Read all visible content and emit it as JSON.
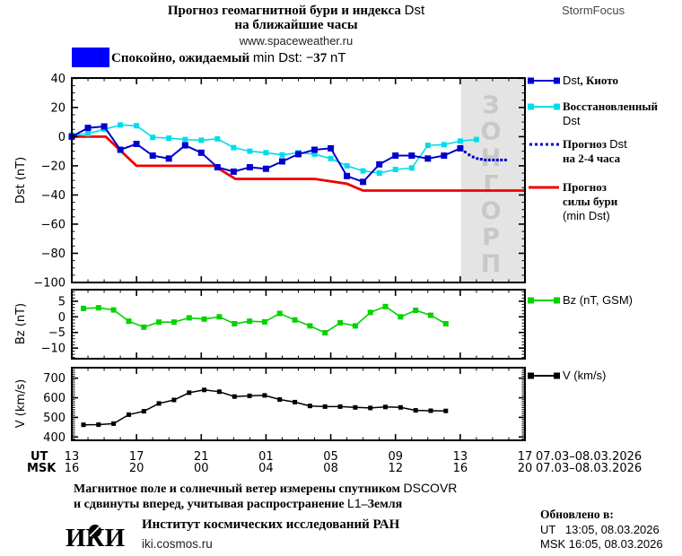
{
  "header": {
    "title_line1": "Прогноз геомагнитной бури и индекса Dst",
    "title_line2": "на ближайшие часы",
    "site": "www.spaceweather.ru",
    "brand": "StormFocus"
  },
  "status": {
    "text": "Спокойно, ожидаемый min Dst: −37 nT",
    "box_color": "#0000ff",
    "expected_min_dst_nt": -37
  },
  "watermark": "ПРОГНОЗ",
  "colors": {
    "kyoto_blue": "#0000cd",
    "restored_cyan": "#00dcec",
    "forecast_red": "#ee0000",
    "bz_green": "#00d300",
    "v_black": "#000000",
    "forecast_region_bg": "#e4e4e4",
    "watermark_text": "#c8c8c8"
  },
  "axis": {
    "ut_label": "UT",
    "msk_label": "MSK",
    "ut_ticks": [
      "13",
      "17",
      "21",
      "01",
      "05",
      "09",
      "13",
      "17"
    ],
    "msk_ticks": [
      "16",
      "20",
      "00",
      "04",
      "08",
      "12",
      "16",
      "20"
    ],
    "date_range": "07.03–08.03.2026"
  },
  "chart_data": [
    {
      "id": "dst",
      "type": "line",
      "ylabel": "Dst (nT)",
      "ylim": [
        -100,
        40
      ],
      "yticks": [
        40,
        20,
        0,
        -20,
        -40,
        -60,
        -80,
        -100
      ],
      "ytick_major": 20,
      "ytick_minor": 5,
      "x_hours_span": 28,
      "forecast_region_start_hour": 24.05,
      "series": [
        {
          "name": "Dst, Киото",
          "color": "#0000cd",
          "marker": "square",
          "ms": 7,
          "lw": 2,
          "x_start": 0,
          "x_step": 1,
          "values": [
            0,
            6,
            7,
            -9,
            -5,
            -13,
            -15,
            -6,
            -11,
            -21,
            -24,
            -21,
            -22,
            -17,
            -12,
            -9,
            -8,
            -27,
            -31,
            -19,
            -13,
            -13,
            -15,
            -13,
            -8
          ]
        },
        {
          "name": "Восстановленный Dst",
          "color": "#00dcec",
          "marker": "square",
          "ms": 6,
          "lw": 1.6,
          "x_start": 0,
          "x_step": 1,
          "values": [
            1,
            2,
            5,
            8,
            7.5,
            -0.5,
            -1,
            -2,
            -2.5,
            -1.5,
            -7.5,
            -10,
            -11,
            -12.5,
            -11,
            -12,
            -15,
            -20,
            -23.5,
            -25,
            -22.5,
            -21.5,
            -6,
            -5.5,
            -3,
            -2
          ]
        },
        {
          "name": "Прогноз Dst на 2-4 часа",
          "color": "#0000cd",
          "marker": "dots",
          "ms": 3,
          "lw": 0,
          "points": [
            [
              24.3,
              -10.5
            ],
            [
              24.55,
              -12.5
            ],
            [
              24.8,
              -14
            ],
            [
              25.05,
              -15
            ],
            [
              25.3,
              -15.5
            ],
            [
              25.55,
              -16
            ],
            [
              25.8,
              -16
            ],
            [
              26.05,
              -16
            ],
            [
              26.3,
              -16
            ],
            [
              26.55,
              -16
            ],
            [
              26.8,
              -16
            ]
          ]
        },
        {
          "name": "Прогноз силы бури (min Dst)",
          "color": "#ee0000",
          "marker": "none",
          "ms": 0,
          "lw": 2.8,
          "points": [
            [
              0,
              0
            ],
            [
              2.1,
              0
            ],
            [
              4,
              -20
            ],
            [
              8.8,
              -20
            ],
            [
              10.1,
              -29
            ],
            [
              15,
              -29
            ],
            [
              17,
              -32.3
            ],
            [
              18,
              -37
            ],
            [
              28,
              -37
            ]
          ]
        }
      ]
    },
    {
      "id": "bz",
      "type": "line",
      "ylabel": "Bz (nT)",
      "ylim": [
        -13.4,
        8.7
      ],
      "yticks": [
        5,
        0,
        -5,
        -10
      ],
      "ytick_major": 5,
      "ytick_minor": 1,
      "series": [
        {
          "name": "Bz (nT, GSM)",
          "color": "#00d300",
          "marker": "square",
          "ms": 6,
          "lw": 1.6,
          "x_start": 0.72,
          "x_step": 0.933,
          "values": [
            2.7,
            2.9,
            2.2,
            -1.4,
            -3.3,
            -1.7,
            -1.7,
            -0.3,
            -0.7,
            0,
            -2.2,
            -1.4,
            -1.6,
            1.1,
            -1,
            -2.9,
            -5.1,
            -1.9,
            -2.9,
            1.4,
            3.3,
            0,
            2.1,
            0.5,
            -2.2
          ]
        }
      ]
    },
    {
      "id": "v",
      "type": "line",
      "ylabel": "V (km/s)",
      "ylim": [
        383,
        753
      ],
      "yticks": [
        700,
        600,
        500,
        400
      ],
      "ytick_major": 100,
      "ytick_minor": 10,
      "series": [
        {
          "name": "V (km/s)",
          "color": "#000000",
          "marker": "square",
          "ms": 5,
          "lw": 1.5,
          "x_start": 0.72,
          "x_step": 0.933,
          "values": [
            462,
            463,
            468,
            514,
            531,
            571,
            589,
            626,
            640,
            631,
            606,
            610,
            612,
            591,
            578,
            558,
            555,
            555,
            551,
            548,
            553,
            551,
            536,
            534,
            533
          ]
        }
      ]
    }
  ],
  "legend": {
    "dst_entries": [
      {
        "marker": "squares",
        "color": "#0000cd",
        "lines": [
          "Dst, Киото"
        ]
      },
      {
        "marker": "squares",
        "color": "#00dcec",
        "lines": [
          "Восстановленный",
          "Dst"
        ]
      },
      {
        "marker": "dots",
        "color": "#0000cd",
        "lines": [
          "Прогноз Dst",
          "на 2-4 часа"
        ]
      },
      {
        "marker": "line",
        "color": "#ee0000",
        "lines": [
          "Прогноз",
          "силы бури",
          "(min Dst)"
        ]
      }
    ],
    "bz_entry": {
      "marker": "squares",
      "color": "#00d300",
      "lines": [
        "Bz (nT, GSM)"
      ]
    },
    "v_entry": {
      "marker": "squares",
      "color": "#000000",
      "lines": [
        "V (km/s)"
      ]
    }
  },
  "footer": {
    "note_line1": "Магнитное поле и солнечный ветер измерены спутником DSCOVR",
    "note_line2": "и сдвинуты вперед, учитывая распространение L1–Земля",
    "logo_text": "ИКИ",
    "institute": "Институт космических исследований РАН",
    "site": "iki.cosmos.ru",
    "updated_label": "Обновлено в:",
    "updated_ut": "UT   13:05, 08.03.2026",
    "updated_msk": "MSK 16:05, 08.03.2026"
  }
}
